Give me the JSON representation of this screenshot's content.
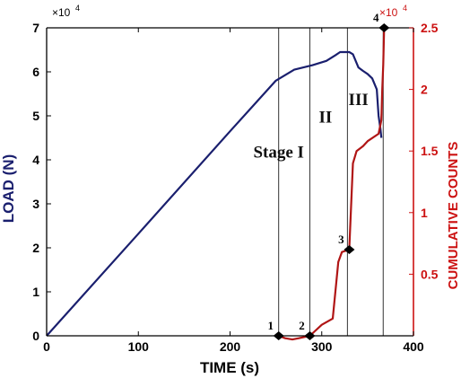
{
  "chart_data": {
    "type": "line",
    "xlabel": "TIME (s)",
    "ylabel_left": "LOAD (N)",
    "ylabel_right": "CUMULATIVE COUNTS",
    "left_multiplier": "×10",
    "left_multiplier_exp": "4",
    "right_multiplier": "×10",
    "right_multiplier_exp": "4",
    "xlim": [
      0,
      400
    ],
    "ylim_left": [
      0,
      70000
    ],
    "ylim_right": [
      0,
      25000
    ],
    "x_ticks": [
      "0",
      "100",
      "200",
      "300",
      "400"
    ],
    "y_left_ticks": [
      "0",
      "1",
      "2",
      "3",
      "4",
      "5",
      "6",
      "7"
    ],
    "y_right_ticks": [
      "0.5",
      "1",
      "1.5",
      "2",
      "2.5"
    ],
    "grid": false,
    "colors": {
      "load": "#1a1f6e",
      "counts": "#b01515",
      "right_axis": "#cc1111",
      "axis": "#000000"
    },
    "stage_lines_x": [
      253,
      287,
      328,
      367
    ],
    "stage_labels": [
      {
        "text": "Stage I",
        "x": 253,
        "y_left": 40500
      },
      {
        "text": "II",
        "x": 304,
        "y_left": 48500
      },
      {
        "text": "III",
        "x": 340,
        "y_left": 52500
      }
    ],
    "points": [
      {
        "label": "1",
        "x": 253,
        "y_right": 0
      },
      {
        "label": "2",
        "x": 287,
        "y_right": 0
      },
      {
        "label": "3",
        "x": 330,
        "y_right": 7000
      },
      {
        "label": "4",
        "x": 368,
        "y_right": 25000
      }
    ],
    "series": [
      {
        "name": "",
        "axis": "left",
        "x": [
          0,
          100,
          200,
          250,
          270,
          290,
          305,
          315,
          320,
          330,
          334,
          340,
          345,
          350,
          355,
          360,
          362,
          364,
          365
        ],
        "y": [
          0,
          23200,
          46500,
          58000,
          60500,
          61500,
          62500,
          63800,
          64500,
          64500,
          64000,
          61000,
          60200,
          59500,
          58500,
          56000,
          50000,
          47000,
          45000
        ]
      },
      {
        "name": "",
        "axis": "right",
        "x": [
          253,
          260,
          268,
          275,
          287,
          300,
          312,
          318,
          322,
          330,
          334,
          338,
          345,
          350,
          362,
          365,
          366,
          367,
          368
        ],
        "y": [
          0,
          -200,
          -300,
          -200,
          0,
          900,
          1400,
          6000,
          6800,
          7000,
          14000,
          15000,
          15400,
          15800,
          16400,
          17500,
          20000,
          22000,
          25000
        ]
      }
    ]
  }
}
